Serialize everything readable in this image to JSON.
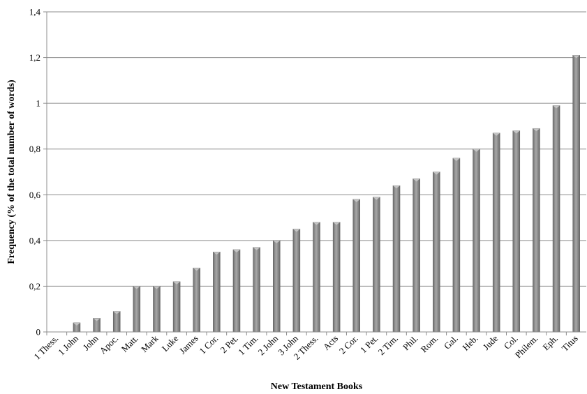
{
  "chart_data": {
    "type": "bar",
    "title": "",
    "xlabel": "New Testament Books",
    "ylabel": "Frequency (% of the total number of words)",
    "categories": [
      "1 Thess.",
      "1 John",
      "John",
      "Apoc.",
      "Matt.",
      "Mark",
      "Luke",
      "James",
      "1 Cor.",
      "2 Pet.",
      "1 Tim.",
      "2 John",
      "3 John",
      "2 Thess.",
      "Acts",
      "2 Cor.",
      "1 Pet.",
      "2 Tim.",
      "Phil.",
      "Rom.",
      "Gal.",
      "Heb.",
      "Jude",
      "Col.",
      "Philem.",
      "Eph.",
      "Titus"
    ],
    "values": [
      0,
      0.04,
      0.06,
      0.09,
      0.2,
      0.2,
      0.22,
      0.28,
      0.35,
      0.36,
      0.37,
      0.4,
      0.45,
      0.48,
      0.48,
      0.58,
      0.59,
      0.64,
      0.67,
      0.7,
      0.76,
      0.8,
      0.87,
      0.88,
      0.89,
      0.99,
      1.21
    ],
    "ylim": [
      0,
      1.4
    ],
    "yticks": [
      0,
      0.2,
      0.4,
      0.6,
      0.8,
      1,
      1.2,
      1.4
    ],
    "ytick_labels": [
      "0",
      "0,2",
      "0,4",
      "0,6",
      "0,8",
      "1",
      "1,2",
      "1,4"
    ],
    "grid": true,
    "legend": "none",
    "bar_color": "#8a8a8a"
  }
}
